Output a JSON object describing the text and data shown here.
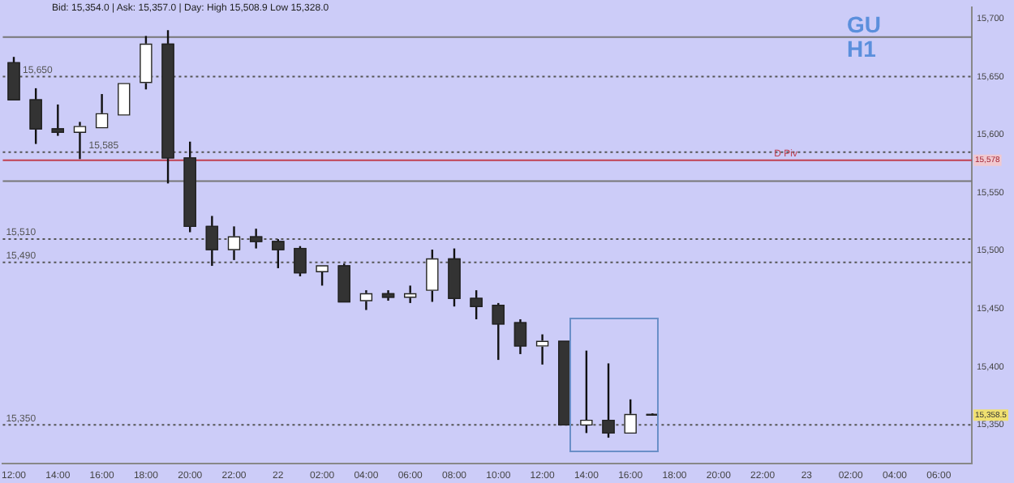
{
  "chart_data": {
    "type": "candlestick",
    "title": "GU",
    "subtitle": "H1",
    "categories": [
      "12:00",
      null,
      "14:00",
      null,
      "16:00",
      null,
      "18:00",
      null,
      "20:00",
      null,
      "22:00",
      null,
      "22",
      null,
      "02:00",
      null,
      "04:00",
      null,
      "06:00",
      null,
      "08:00",
      null,
      "10:00",
      null,
      "12:00",
      null,
      "14:00",
      null,
      "16:00",
      null,
      "18:00",
      null,
      "20:00",
      null,
      "22:00",
      null,
      "23",
      null,
      "02:00",
      null,
      "04:00",
      null,
      "06:00",
      null
    ],
    "ohlc": [
      [
        15662,
        15667,
        15630,
        15630
      ],
      [
        15630,
        15640,
        15592,
        15605
      ],
      [
        15605,
        15626,
        15599,
        15602
      ],
      [
        15602,
        15611,
        15579,
        15607
      ],
      [
        15606,
        15635,
        15606,
        15618
      ],
      [
        15617,
        15644,
        15617,
        15644
      ],
      [
        15645,
        15685,
        15639,
        15678
      ],
      [
        15678,
        15690,
        15558,
        15580
      ],
      [
        15580,
        15594,
        15516,
        15521
      ],
      [
        15521,
        15530,
        15487,
        15501
      ],
      [
        15501,
        15521,
        15492,
        15512
      ],
      [
        15512,
        15519,
        15502,
        15508
      ],
      [
        15508,
        15510,
        15485,
        15501
      ],
      [
        15502,
        15504,
        15478,
        15481
      ],
      [
        15482,
        15487,
        15470,
        15487
      ],
      [
        15487,
        15489,
        15456,
        15456
      ],
      [
        15457,
        15466,
        15449,
        15463
      ],
      [
        15463,
        15466,
        15457,
        15460
      ],
      [
        15460,
        15470,
        15455,
        15463
      ],
      [
        15466,
        15501,
        15456,
        15493
      ],
      [
        15493,
        15502,
        15452,
        15459
      ],
      [
        15459,
        15466,
        15441,
        15452
      ],
      [
        15453,
        15455,
        15406,
        15437
      ],
      [
        15438,
        15441,
        15411,
        15418
      ],
      [
        15418,
        15428,
        15402,
        15422
      ],
      [
        15422,
        15422,
        15350,
        15350
      ],
      [
        15350,
        15414,
        15343,
        15354
      ],
      [
        15354,
        15403,
        15339,
        15343
      ],
      [
        15343,
        15372,
        15343,
        15359
      ],
      [
        15359,
        15360,
        15358,
        15358.5
      ],
      null,
      null,
      null,
      null,
      null,
      null,
      null,
      null,
      null,
      null,
      null,
      null,
      null,
      null
    ],
    "colors": [
      "#333333",
      "#333333",
      "#333333",
      "#ffffff",
      "#ffffff",
      "#ffffff",
      "#ffffff",
      "#333333",
      "#333333",
      "#333333",
      "#ffffff",
      "#333333",
      "#333333",
      "#333333",
      "#ffffff",
      "#333333",
      "#ffffff",
      "#333333",
      "#ffffff",
      "#ffffff",
      "#333333",
      "#333333",
      "#333333",
      "#333333",
      "#ffffff",
      "#333333",
      "#ffffff",
      "#333333",
      "#ffffff",
      "#333333",
      null,
      null,
      null,
      null,
      null,
      null,
      null,
      null,
      null,
      null,
      null,
      null,
      null,
      null
    ],
    "ylim": [
      15317,
      15710
    ],
    "yticks": [
      {
        "value": 15350,
        "label": "15,350"
      },
      {
        "value": 15400,
        "label": "15,400"
      },
      {
        "value": 15450,
        "label": "15,450"
      },
      {
        "value": 15500,
        "label": "15,500"
      },
      {
        "value": 15550,
        "label": "15,550"
      },
      {
        "value": 15600,
        "label": "15,600"
      },
      {
        "value": 15650,
        "label": "15,650"
      },
      {
        "value": 15700,
        "label": "15,700"
      }
    ],
    "ref_lines": [
      {
        "axis": "y",
        "value": 15650,
        "label": "15,650",
        "color": "#555555",
        "line_style": "dotted"
      },
      {
        "axis": "y",
        "value": 15585,
        "label": "15,585",
        "color": "#555555",
        "line_style": "dotted"
      },
      {
        "axis": "y",
        "value": 15510,
        "label": "15,510",
        "color": "#555555",
        "line_style": "dotted"
      },
      {
        "axis": "y",
        "value": 15490,
        "label": "15,490",
        "color": "#555555",
        "line_style": "dotted"
      },
      {
        "axis": "y",
        "value": 15350,
        "label": "15,350",
        "color": "#555555",
        "line_style": "dotted"
      },
      {
        "axis": "y",
        "value": 15684,
        "color": "#777777",
        "line_style": "solid"
      },
      {
        "axis": "y",
        "value": 15560,
        "color": "#777777",
        "line_style": "solid"
      },
      {
        "axis": "y",
        "value": 15578,
        "label": "D Piv",
        "color": "#c04050",
        "line_style": "solid"
      }
    ],
    "annotations": [
      "Bid: 15,354.0 | Ask: 15,357.0 | Day: High 15,508.9 Low 15,328.0",
      {
        "text": "15,578",
        "y": 15578
      },
      {
        "text": "15,358.5",
        "y": 15358.5
      }
    ],
    "grid": false,
    "legend": false
  }
}
